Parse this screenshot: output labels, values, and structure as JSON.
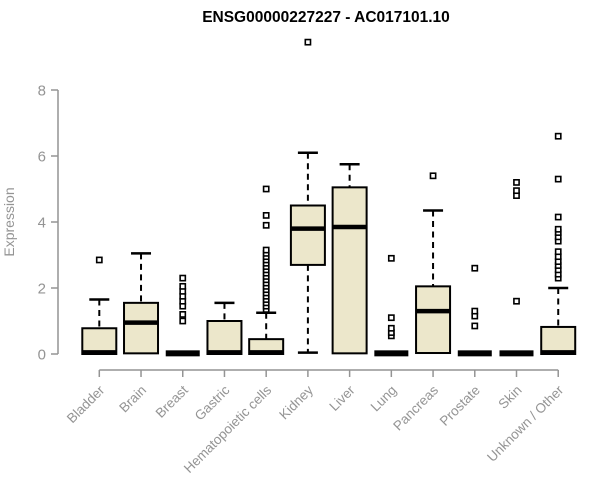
{
  "chart_data": {
    "type": "boxplot",
    "title": "ENSG00000227227 - AC017101.10",
    "ylabel": "Expression",
    "xlabel": "",
    "ylim": [
      0,
      8
    ],
    "yticks": [
      "0",
      "2",
      "4",
      "6",
      "8"
    ],
    "grid": false,
    "legend": "none",
    "box_fill": "#ece7cb",
    "box_stroke": "#000000",
    "axis_color": "#949494",
    "title_color": "#000000",
    "categories": [
      "Bladder",
      "Brain",
      "Breast",
      "Gastric",
      "Hematopoietic cells",
      "Kidney",
      "Liver",
      "Lung",
      "Pancreas",
      "Prostate",
      "Skin",
      "Unknown / Other"
    ],
    "series": [
      {
        "category": "Bladder",
        "low": 0,
        "q1": 0,
        "median": 0.05,
        "q3": 0.78,
        "high": 1.65,
        "outliers": [
          2.85
        ]
      },
      {
        "category": "Brain",
        "low": 0,
        "q1": 0.02,
        "median": 0.95,
        "q3": 1.55,
        "high": 3.05,
        "outliers": []
      },
      {
        "category": "Breast",
        "low": 0,
        "q1": 0,
        "median": 0.02,
        "q3": 0.04,
        "high": 0.04,
        "outliers": [
          1.0,
          1.2,
          1.45,
          1.6,
          1.75,
          1.9,
          2.05,
          2.3
        ]
      },
      {
        "category": "Gastric",
        "low": 0,
        "q1": 0,
        "median": 0.05,
        "q3": 1.0,
        "high": 1.55,
        "outliers": []
      },
      {
        "category": "Hematopoietic cells",
        "low": 0,
        "q1": 0,
        "median": 0.05,
        "q3": 0.45,
        "high": 1.25,
        "outliers": [
          1.35,
          1.45,
          1.55,
          1.65,
          1.75,
          1.85,
          1.95,
          2.05,
          2.15,
          2.25,
          2.35,
          2.45,
          2.55,
          2.65,
          2.75,
          2.85,
          2.95,
          3.05,
          3.15,
          3.9,
          4.2,
          5.0
        ]
      },
      {
        "category": "Kidney",
        "low": 0.04,
        "q1": 2.7,
        "median": 3.8,
        "q3": 4.5,
        "high": 6.1,
        "outliers": [
          9.45
        ]
      },
      {
        "category": "Liver",
        "low": 0,
        "q1": 0.02,
        "median": 3.85,
        "q3": 5.05,
        "high": 5.75,
        "outliers": []
      },
      {
        "category": "Lung",
        "low": 0,
        "q1": 0,
        "median": 0.02,
        "q3": 0.04,
        "high": 0.04,
        "outliers": [
          0.55,
          0.65,
          0.78,
          1.1,
          2.9
        ]
      },
      {
        "category": "Pancreas",
        "low": 0,
        "q1": 0.03,
        "median": 1.3,
        "q3": 2.05,
        "high": 4.35,
        "outliers": [
          5.4
        ]
      },
      {
        "category": "Prostate",
        "low": 0,
        "q1": 0,
        "median": 0.02,
        "q3": 0.04,
        "high": 0.04,
        "outliers": [
          0.85,
          1.15,
          1.3,
          2.6
        ]
      },
      {
        "category": "Skin",
        "low": 0,
        "q1": 0,
        "median": 0.02,
        "q3": 0.04,
        "high": 0.04,
        "outliers": [
          1.6,
          4.8,
          4.95,
          5.2
        ]
      },
      {
        "category": "Unknown / Other",
        "low": 0,
        "q1": 0,
        "median": 0.05,
        "q3": 0.82,
        "high": 2.0,
        "outliers": [
          2.3,
          2.42,
          2.55,
          2.68,
          2.8,
          2.95,
          3.1,
          3.42,
          3.55,
          3.68,
          3.78,
          4.15,
          5.3,
          6.6
        ]
      }
    ]
  }
}
